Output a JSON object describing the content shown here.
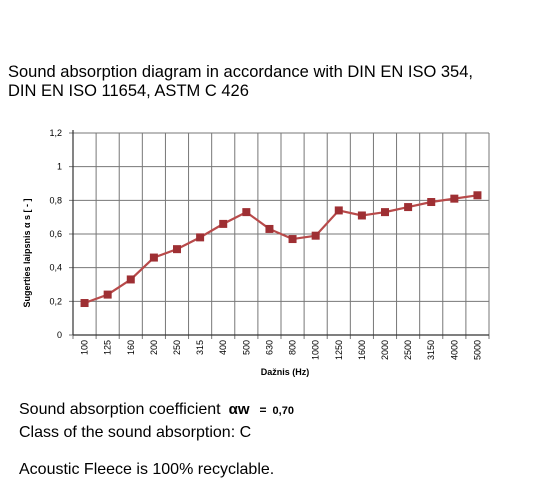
{
  "heading": {
    "line1": "Sound absorption diagram in accordance with DIN EN ISO 354,",
    "line2": "DIN EN ISO 11654, ASTM C 426"
  },
  "chart_data": {
    "type": "line",
    "xlabel": "Dažnis (Hz)",
    "ylabel": "Sugerties laipsnis  α s [ - ]",
    "categories": [
      "100",
      "125",
      "160",
      "200",
      "250",
      "315",
      "400",
      "500",
      "630",
      "800",
      "1000",
      "1250",
      "1600",
      "2000",
      "2500",
      "3150",
      "4000",
      "5000"
    ],
    "series": [
      {
        "values": [
          0.19,
          0.24,
          0.33,
          0.46,
          0.51,
          0.58,
          0.66,
          0.73,
          0.63,
          0.57,
          0.59,
          0.74,
          0.71,
          0.73,
          0.76,
          0.79,
          0.81,
          0.83
        ]
      }
    ],
    "ylim": [
      0,
      1.2
    ],
    "yticks": [
      "0",
      "0,2",
      "0,4",
      "0,6",
      "0,8",
      "1",
      "1,2"
    ],
    "grid": true,
    "line_color": "#b84a4a",
    "marker_color": "#9e2f33"
  },
  "info": {
    "coef_label": "Sound absorption coefficient",
    "coef_symbol": "αw",
    "coef_eq": "=",
    "coef_value": "0,70",
    "class_text": "Class of the sound absorption: C",
    "recycle_text": "Acoustic Fleece is 100% recyclable."
  }
}
